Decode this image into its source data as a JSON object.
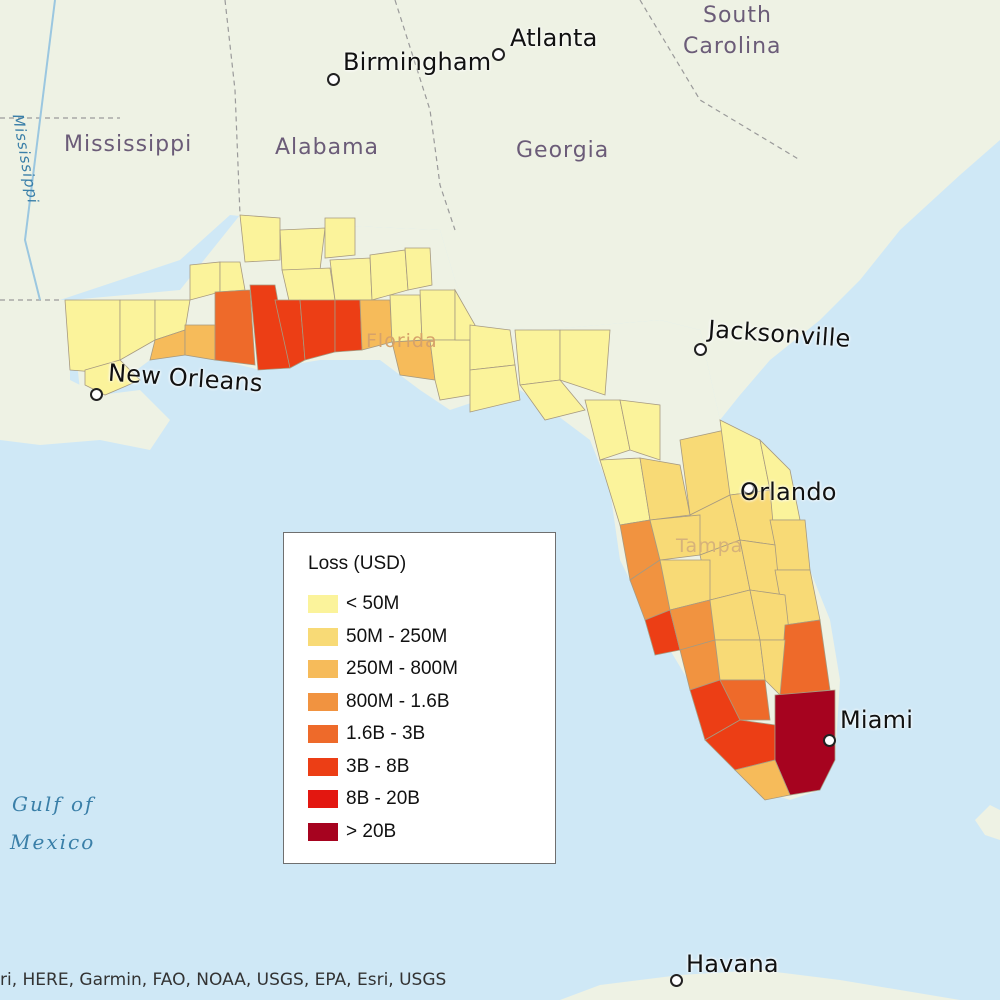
{
  "map": {
    "legend": {
      "title": "Loss (USD)",
      "items": [
        {
          "label": "< 50M",
          "color": "#fbf39b"
        },
        {
          "label": "50M - 250M",
          "color": "#f8da76"
        },
        {
          "label": "250M - 800M",
          "color": "#f6bb5a"
        },
        {
          "label": "800M - 1.6B",
          "color": "#f19340"
        },
        {
          "label": "1.6B - 3B",
          "color": "#ee6a2a"
        },
        {
          "label": "3B - 8B",
          "color": "#ec3e15"
        },
        {
          "label": "8B - 20B",
          "color": "#e31710"
        },
        {
          "label": "> 20B",
          "color": "#a6031f"
        }
      ]
    },
    "cities": {
      "atlanta": "Atlanta",
      "birmingham": "Birmingham",
      "new_orleans": "New Orleans",
      "jacksonville": "Jacksonville",
      "orlando": "Orlando",
      "miami": "Miami",
      "havana": "Havana",
      "tampa": "Tampa",
      "florida": "Florida"
    },
    "states": {
      "mississippi": "Mississippi",
      "alabama": "Alabama",
      "georgia": "Georgia",
      "south": "South",
      "carolina": "Carolina",
      "mississippi_river": "Mississippi"
    },
    "water": {
      "gulf": "Gulf of",
      "mexico": "Mexico"
    },
    "attribution": "ri, HERE, Garmin, FAO, NOAA, USGS, EPA, Esri, USGS"
  }
}
